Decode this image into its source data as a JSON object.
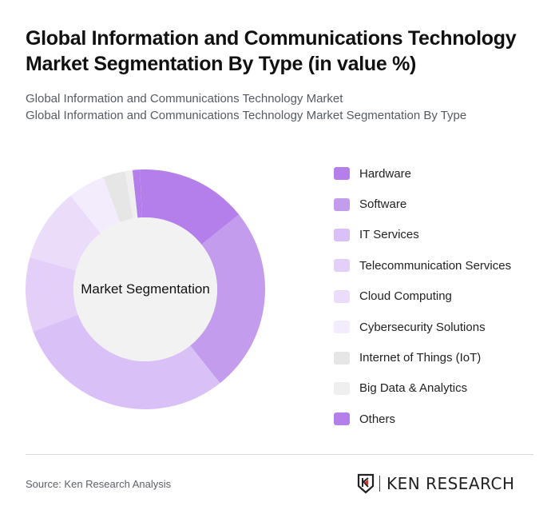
{
  "header": {
    "title": "Global Information and Communications Technology Market Segmentation By Type (in value %)",
    "subtitle_line1": "Global Information and Communications Technology Market",
    "subtitle_line2": "Global Information and Communications Technology Market Segmentation By Type"
  },
  "chart_data": {
    "type": "pie",
    "subtype": "donut",
    "title": "Global Information and Communications Technology Market Segmentation By Type (in value %)",
    "center_label": "Market Segmentation",
    "categories": [
      "Hardware",
      "Software",
      "IT Services",
      "Telecommunication Services",
      "Cloud Computing",
      "Cybersecurity Solutions",
      "Internet of Things (IoT)",
      "Big Data & Analytics",
      "Others"
    ],
    "values": [
      15,
      25,
      30,
      10,
      10,
      5,
      3,
      1,
      1
    ],
    "colors": [
      "#b47fea",
      "#c49cee",
      "#d9c0f7",
      "#e3cff8",
      "#ebdcfa",
      "#f3ecfc",
      "#e6e6e6",
      "#efefef",
      "#b47fea"
    ],
    "legend_position": "right",
    "unit": "%"
  },
  "legend": {
    "items": [
      {
        "label": "Hardware",
        "color": "#b47fea"
      },
      {
        "label": "Software",
        "color": "#c49cee"
      },
      {
        "label": "IT Services",
        "color": "#d9c0f7"
      },
      {
        "label": "Telecommunication Services",
        "color": "#e3cff8"
      },
      {
        "label": "Cloud Computing",
        "color": "#ebdcfa"
      },
      {
        "label": "Cybersecurity Solutions",
        "color": "#f3ecfc"
      },
      {
        "label": "Internet of Things (IoT)",
        "color": "#e6e6e6"
      },
      {
        "label": "Big Data & Analytics",
        "color": "#efefef"
      },
      {
        "label": "Others",
        "color": "#b47fea"
      }
    ]
  },
  "footer": {
    "source": "Source: Ken Research Analysis",
    "logo_text": "KEN RESEARCH"
  }
}
